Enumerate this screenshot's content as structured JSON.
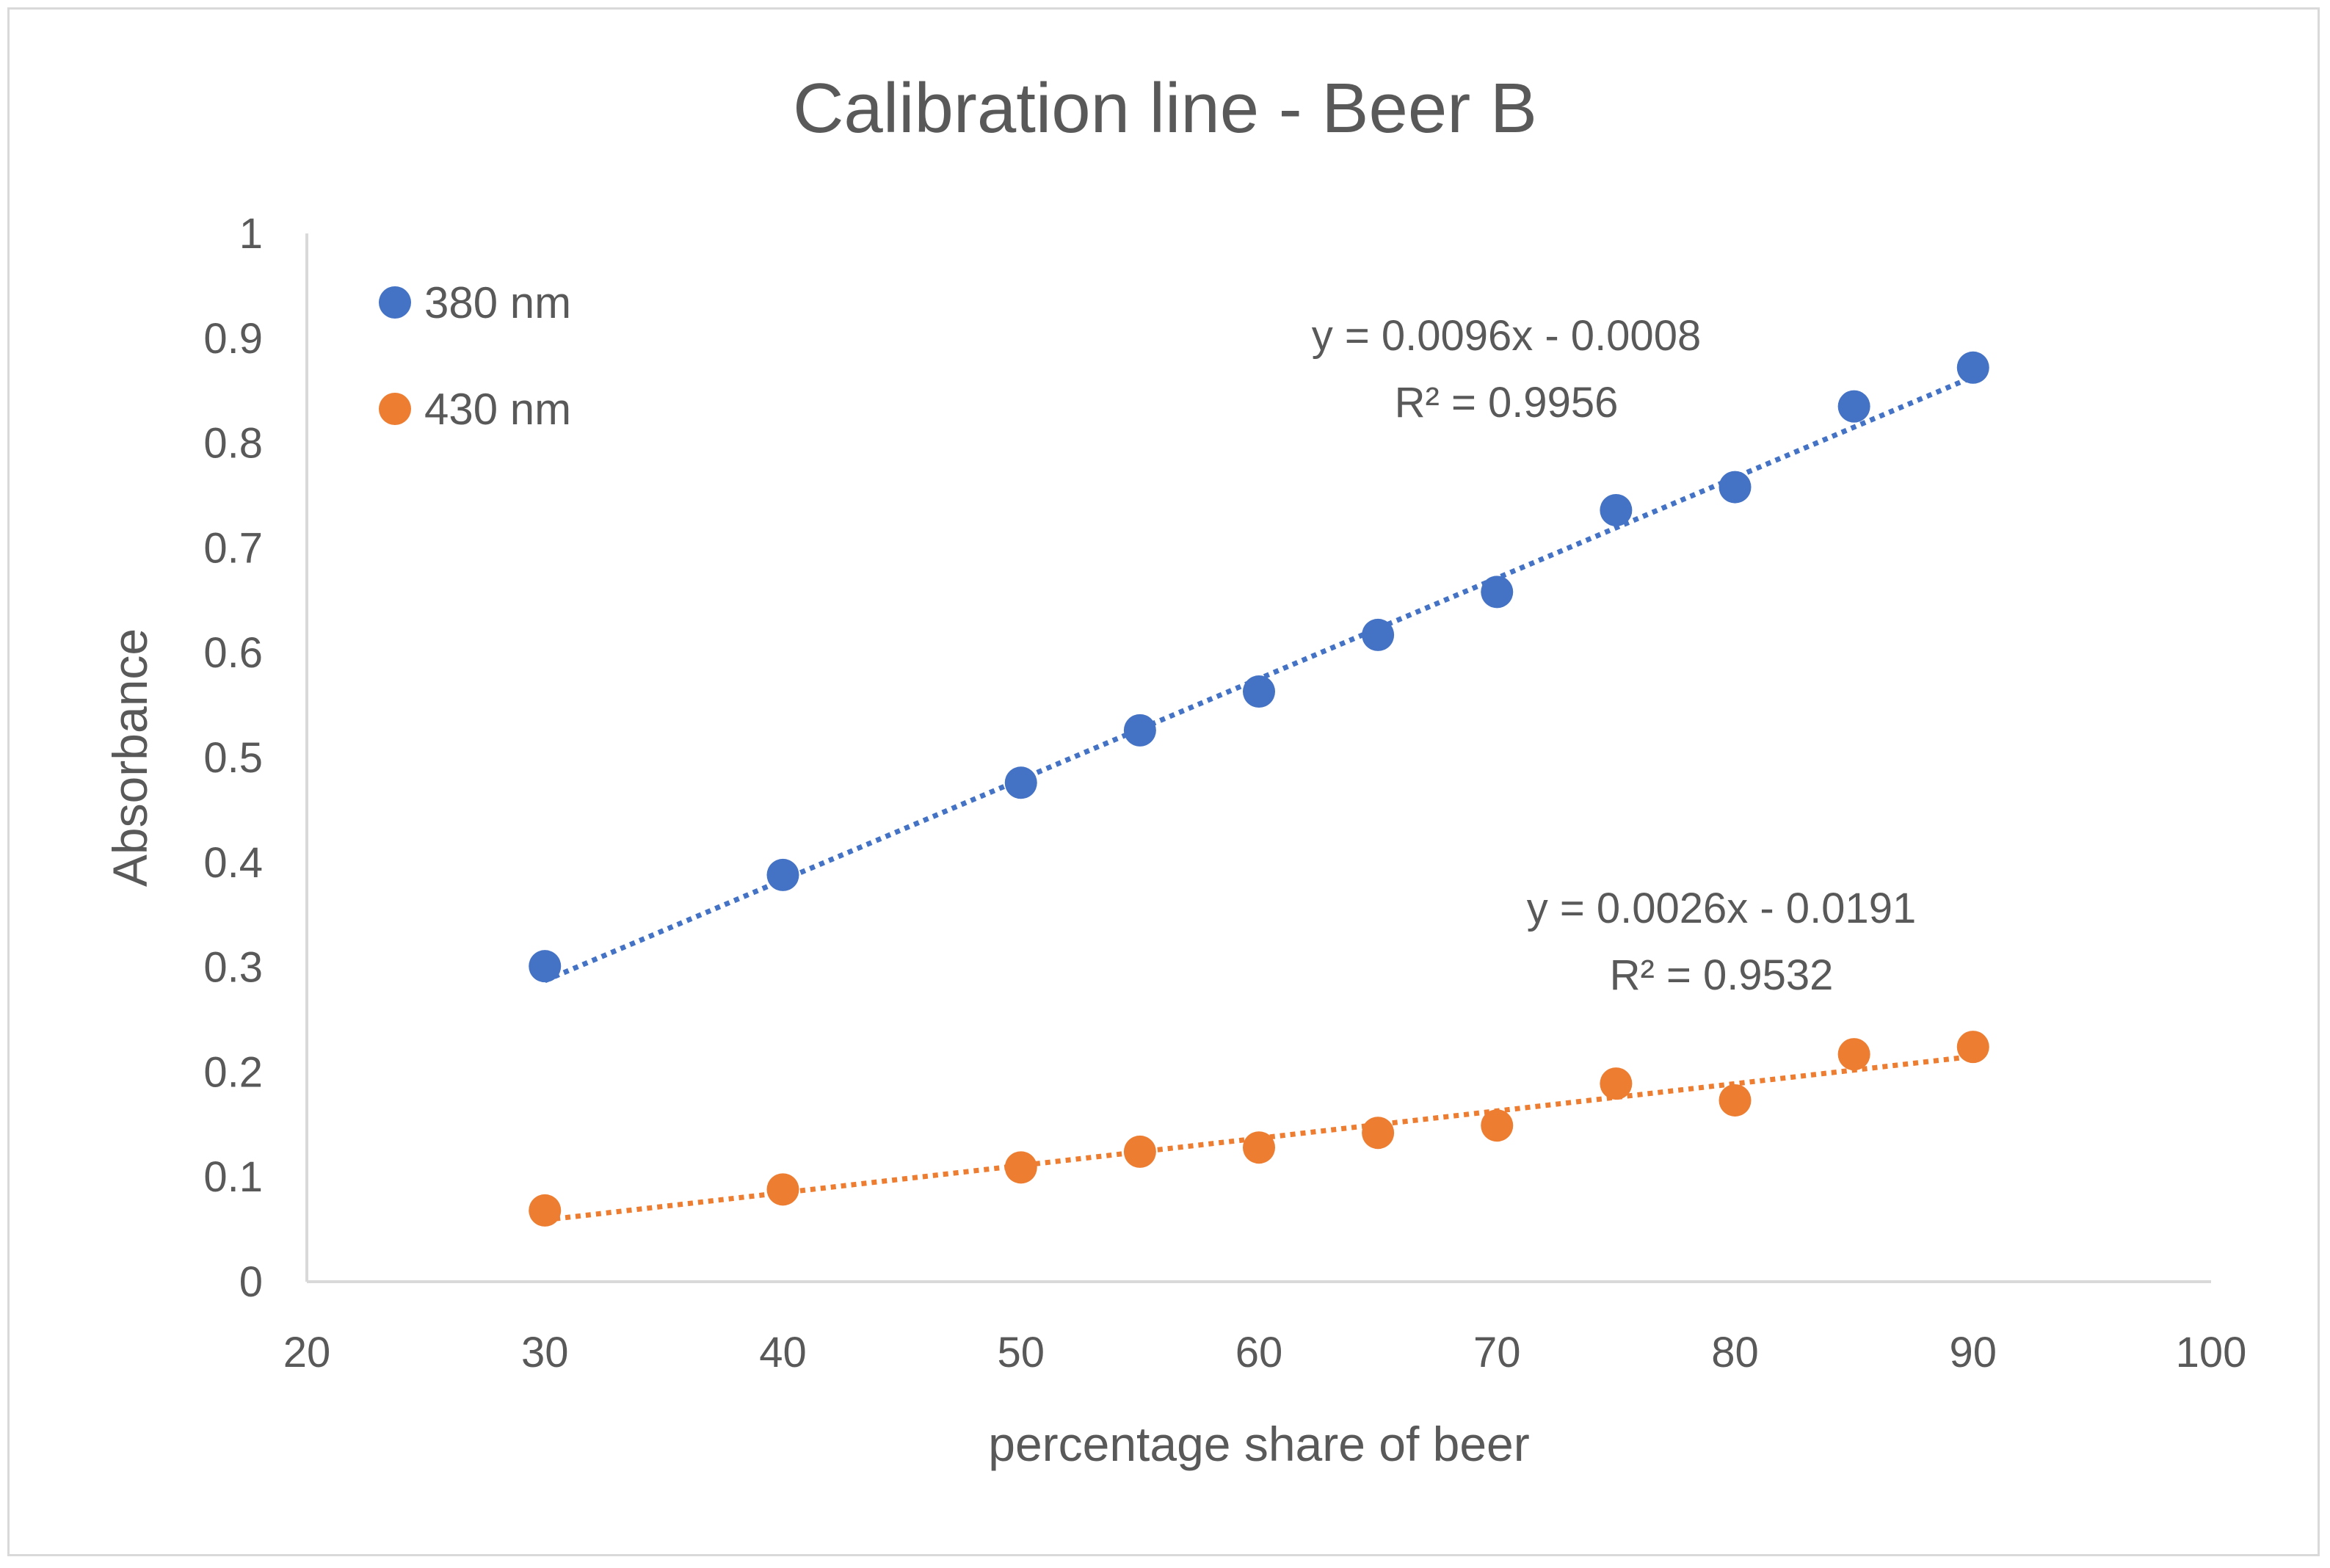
{
  "chart_data": {
    "type": "scatter",
    "title": "Calibration line - Beer B",
    "xlabel": "percentage share of beer",
    "ylabel": "Absorbance",
    "xlim": [
      20,
      100
    ],
    "ylim": [
      0,
      1
    ],
    "x_ticks": [
      "20",
      "30",
      "40",
      "50",
      "60",
      "70",
      "80",
      "90",
      "100"
    ],
    "y_ticks": [
      "0",
      "0.1",
      "0.2",
      "0.3",
      "0.4",
      "0.5",
      "0.6",
      "0.7",
      "0.8",
      "0.9",
      "1"
    ],
    "grid": false,
    "legend_position": "top-left",
    "series": [
      {
        "name": "380 nm",
        "color": "#4472c4",
        "x": [
          30,
          40,
          50,
          55,
          60,
          65,
          70,
          75,
          80,
          85,
          90
        ],
        "y": [
          0.301,
          0.388,
          0.476,
          0.526,
          0.563,
          0.617,
          0.658,
          0.736,
          0.758,
          0.835,
          0.872
        ],
        "trendline": {
          "slope": 0.0096,
          "intercept": -0.0008,
          "equation": "y = 0.0096x - 0.0008",
          "r2": "R² = 0.9956"
        }
      },
      {
        "name": "430 nm",
        "color": "#ed7d31",
        "x": [
          30,
          40,
          50,
          55,
          60,
          65,
          70,
          75,
          80,
          85,
          90
        ],
        "y": [
          0.068,
          0.088,
          0.109,
          0.124,
          0.128,
          0.142,
          0.149,
          0.189,
          0.173,
          0.217,
          0.224
        ],
        "trendline": {
          "slope": 0.0026,
          "intercept": -0.0191,
          "equation": "y = 0.0026x - 0.0191",
          "r2": "R² = 0.9532"
        }
      }
    ]
  }
}
